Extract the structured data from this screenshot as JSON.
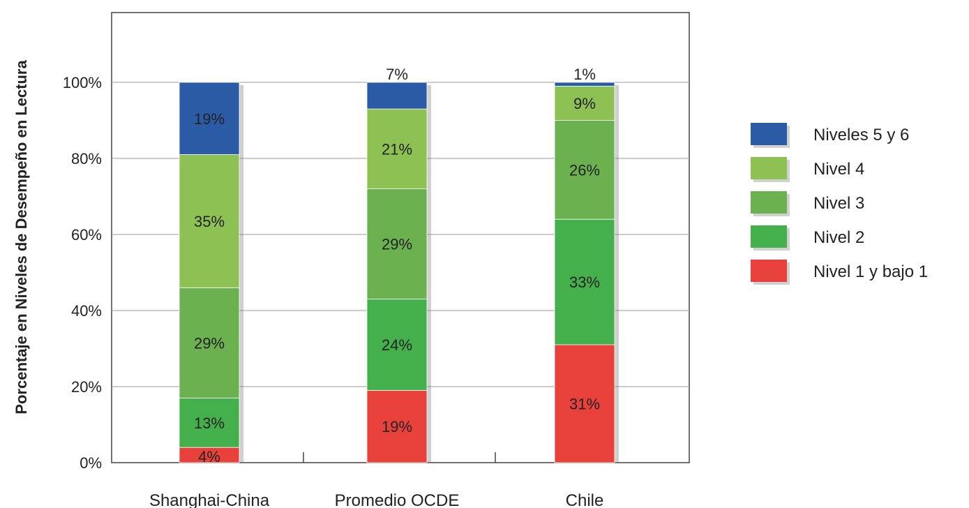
{
  "chart_data": {
    "type": "bar",
    "stacked": true,
    "ylabel": "Porcentaje en Niveles  de Desempeño en Lectura",
    "ylim": [
      0,
      100
    ],
    "yticks": [
      "0%",
      "20%",
      "40%",
      "60%",
      "80%",
      "100%"
    ],
    "categories": [
      "Shanghai-China",
      "Promedio OCDE",
      "Chile"
    ],
    "grid": true,
    "legend_position": "right",
    "series": [
      {
        "name": "Nivel 1 y bajo 1",
        "color": "#e8403a",
        "values": [
          4,
          19,
          31
        ],
        "labels": [
          "4%",
          "19%",
          "31%"
        ]
      },
      {
        "name": "Nivel 2",
        "color": "#44b04b",
        "values": [
          13,
          24,
          33
        ],
        "labels": [
          "13%",
          "24%",
          "33%"
        ]
      },
      {
        "name": "Nivel 3",
        "color": "#6bb14f",
        "values": [
          29,
          29,
          26
        ],
        "labels": [
          "29%",
          "29%",
          "26%"
        ]
      },
      {
        "name": "Nivel 4",
        "color": "#8dc153",
        "values": [
          35,
          21,
          9
        ],
        "labels": [
          "35%",
          "21%",
          "9%"
        ]
      },
      {
        "name": "Niveles 5 y 6",
        "color": "#2c5ba6",
        "values": [
          19,
          7,
          1
        ],
        "labels": [
          "19%",
          "7%",
          "1%"
        ]
      }
    ]
  }
}
